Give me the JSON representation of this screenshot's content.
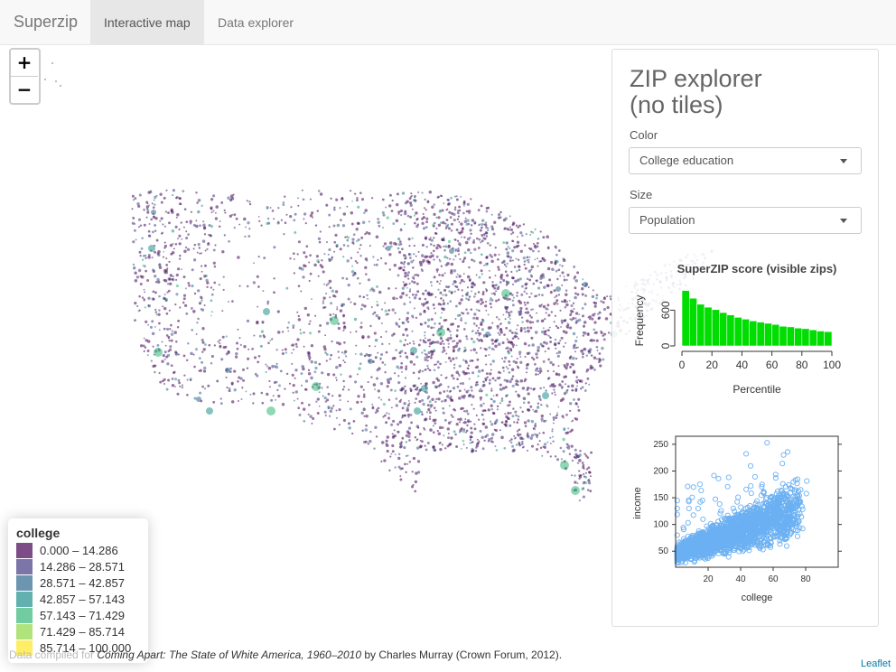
{
  "navbar": {
    "brand": "Superzip",
    "tabs": [
      {
        "label": "Interactive map",
        "active": true
      },
      {
        "label": "Data explorer",
        "active": false
      }
    ]
  },
  "zoom": {
    "in": "+",
    "out": "−"
  },
  "panel": {
    "title_line1": "ZIP explorer",
    "title_line2": "(no tiles)",
    "color_label": "Color",
    "color_value": "College education",
    "size_label": "Size",
    "size_value": "Population"
  },
  "chart_data": [
    {
      "type": "bar",
      "title": "SuperZIP score (visible zips)",
      "xlabel": "Percentile",
      "ylabel": "Frequency",
      "bar_color": "#00DD00",
      "xlim": [
        0,
        100
      ],
      "ylim": [
        0,
        1000
      ],
      "x_ticks": [
        "0",
        "20",
        "40",
        "60",
        "80",
        "100"
      ],
      "y_ticks": [
        "0",
        "600"
      ],
      "bin_width": 5,
      "values": [
        930,
        800,
        700,
        650,
        610,
        560,
        520,
        480,
        450,
        420,
        400,
        380,
        360,
        330,
        320,
        300,
        290,
        270,
        250,
        240
      ]
    },
    {
      "type": "scatter",
      "xlabel": "college",
      "ylabel": "income",
      "point_color": "#6BB0F2",
      "xlim": [
        0,
        100
      ],
      "ylim": [
        20,
        265
      ],
      "x_ticks": [
        "20",
        "40",
        "60",
        "80"
      ],
      "y_ticks": [
        "50",
        "100",
        "150",
        "200",
        "250"
      ],
      "trend": {
        "slope": 1.1,
        "intercept": 45
      }
    }
  ],
  "legend": {
    "title": "college",
    "items": [
      {
        "label": "0.000 – 14.286",
        "color": "#440154"
      },
      {
        "label": "14.286 – 28.571",
        "color": "#443A83"
      },
      {
        "label": "28.571 – 42.857",
        "color": "#31688E"
      },
      {
        "label": "42.857 – 57.143",
        "color": "#21908C"
      },
      {
        "label": "57.143 – 71.429",
        "color": "#35B779"
      },
      {
        "label": "71.429 – 85.714",
        "color": "#8FD744"
      },
      {
        "label": "85.714 – 100.000",
        "color": "#FDE725"
      }
    ]
  },
  "footer": {
    "prefix": "Data compiled for ",
    "book": "Coming Apart: The State of White America, 1960–2010",
    "suffix": " by Charles Murray (Crown Forum, 2012)."
  },
  "attribution": "Leaflet"
}
